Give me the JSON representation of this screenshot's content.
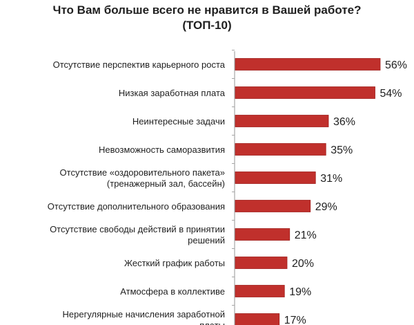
{
  "chart_data": {
    "type": "bar",
    "orientation": "horizontal",
    "title": "Что Вам больше всего не нравится в Вашей работе?",
    "subtitle": "(ТОП-10)",
    "categories": [
      [
        "Отсутствие перспектив карьерного роста"
      ],
      [
        "Низкая заработная плата"
      ],
      [
        "Неинтересные задачи"
      ],
      [
        "Невозможность саморазвития"
      ],
      [
        "Отсутствие «оздоровительного пакета»",
        "(тренажерный зал, бассейн)"
      ],
      [
        "Отсутствие дополнительного образования"
      ],
      [
        "Отсутствие свободы действий в принятии",
        "решений"
      ],
      [
        "Жесткий график работы"
      ],
      [
        "Атмосфера в коллективе"
      ],
      [
        "Нерегулярные начисления заработной",
        "платы"
      ]
    ],
    "values": [
      56,
      54,
      36,
      35,
      31,
      29,
      21,
      20,
      19,
      17
    ],
    "value_labels": [
      "56%",
      "54%",
      "36%",
      "35%",
      "31%",
      "29%",
      "21%",
      "20%",
      "19%",
      "17%"
    ],
    "unit": "%",
    "xlim": [
      0,
      56
    ],
    "grid": false,
    "legend": "none",
    "bar_color": "#c0302c",
    "bar_edge_color": "#a01f1c",
    "axis_color": "#a6a6a6"
  }
}
